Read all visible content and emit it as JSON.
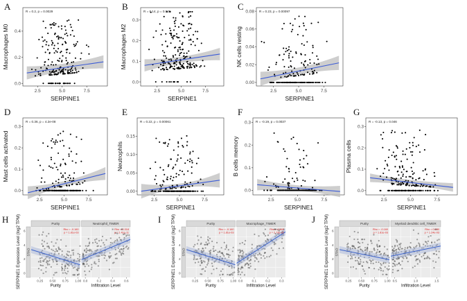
{
  "chart_data": [
    {
      "id": "A",
      "type": "scatter",
      "xlabel": "SERPINE1",
      "ylabel": "Macrophages M0",
      "stat": "R = 0.2, p = 0.0029",
      "xticks": [
        "2.5",
        "5.0",
        "7.5"
      ],
      "xtickvals": [
        2.5,
        5.0,
        7.5
      ],
      "yticks": [
        "0.0",
        "0.2",
        "0.4"
      ],
      "ytickvals": [
        0,
        0.2,
        0.4
      ],
      "xlim": [
        1,
        9.6
      ],
      "ylim": [
        -0.02,
        0.58
      ],
      "fit": [
        [
          1.4,
          0.08
        ],
        [
          9.2,
          0.165
        ]
      ],
      "band": [
        0.05,
        0.03
      ],
      "npoints": 220,
      "seed": 11,
      "ymaxdata": 0.5,
      "zeroFrac": 0.15
    },
    {
      "id": "B",
      "type": "scatter",
      "xlabel": "SERPINE1",
      "ylabel": "Macrophages M2",
      "stat": "R = 0.14, p = 0.036",
      "xticks": [
        "2.5",
        "5.0",
        "7.5"
      ],
      "xtickvals": [
        2.5,
        5.0,
        7.5
      ],
      "yticks": [
        "0.0",
        "0.1",
        "0.2",
        "0.3"
      ],
      "ytickvals": [
        0,
        0.1,
        0.2,
        0.3
      ],
      "xlim": [
        0.8,
        9.4
      ],
      "ylim": [
        -0.02,
        0.36
      ],
      "fit": [
        [
          1.2,
          0.08
        ],
        [
          9.0,
          0.135
        ]
      ],
      "band": [
        0.03,
        0.015
      ],
      "npoints": 220,
      "seed": 22,
      "ymaxdata": 0.34,
      "zeroFrac": 0.05
    },
    {
      "id": "C",
      "type": "scatter",
      "xlabel": "SERPINE1",
      "ylabel": "NK cells resting",
      "stat": "R = 0.23, p = 0.00097",
      "xticks": [
        "2.5",
        "5.0",
        "7.5"
      ],
      "xtickvals": [
        2.5,
        5.0,
        7.5
      ],
      "yticks": [
        "0.00",
        "0.02",
        "0.04",
        "0.06",
        "0.08"
      ],
      "ytickvals": [
        0,
        0.02,
        0.04,
        0.06,
        0.08
      ],
      "xlim": [
        0.8,
        9.4
      ],
      "ylim": [
        -0.004,
        0.084
      ],
      "fit": [
        [
          1.2,
          0.004
        ],
        [
          9.0,
          0.022
        ]
      ],
      "band": [
        0.008,
        0.004
      ],
      "npoints": 210,
      "seed": 33,
      "ymaxdata": 0.08,
      "zeroFrac": 0.45
    },
    {
      "id": "D",
      "type": "scatter",
      "xlabel": "SERPINE1",
      "ylabel": "Mast cells activated",
      "stat": "R = 0.36, p = 4.2e-08",
      "xticks": [
        "2.5",
        "5.0",
        "7.5"
      ],
      "xtickvals": [
        2.5,
        5.0,
        7.5
      ],
      "yticks": [
        "0.0",
        "0.1",
        "0.2",
        "0.3"
      ],
      "ytickvals": [
        0,
        0.1,
        0.2,
        0.3
      ],
      "xlim": [
        0.8,
        9.4
      ],
      "ylim": [
        -0.02,
        0.34
      ],
      "fit": [
        [
          1.3,
          -0.01
        ],
        [
          9.2,
          0.08
        ]
      ],
      "band": [
        0.03,
        0.012
      ],
      "npoints": 210,
      "seed": 44,
      "ymaxdata": 0.31,
      "zeroFrac": 0.55
    },
    {
      "id": "E",
      "type": "scatter",
      "xlabel": "SERPINE1",
      "ylabel": "Neutrophils",
      "stat": "R = 0.22, p = 0.00061",
      "xticks": [
        "2.5",
        "5.0",
        "7.5"
      ],
      "xtickvals": [
        2.5,
        5.0,
        7.5
      ],
      "yticks": [
        "0.00",
        "0.05",
        "0.10",
        "0.15"
      ],
      "ytickvals": [
        0,
        0.05,
        0.1,
        0.15
      ],
      "xlim": [
        0.8,
        9.4
      ],
      "ylim": [
        -0.01,
        0.2
      ],
      "fit": [
        [
          1.2,
          0.0
        ],
        [
          9.0,
          0.03
        ]
      ],
      "band": [
        0.02,
        0.006
      ],
      "npoints": 210,
      "seed": 55,
      "ymaxdata": 0.17,
      "zeroFrac": 0.55
    },
    {
      "id": "F",
      "type": "scatter",
      "xlabel": "SERPINE1",
      "ylabel": "B cells memory",
      "stat": "R = -0.19, p = 0.0037",
      "xticks": [
        "2.5",
        "5.0",
        "7.5"
      ],
      "xtickvals": [
        2.5,
        5.0,
        7.5
      ],
      "yticks": [
        "0.0",
        "0.1",
        "0.2",
        "0.3"
      ],
      "ytickvals": [
        0,
        0.1,
        0.2,
        0.3
      ],
      "xlim": [
        0.8,
        9.4
      ],
      "ylim": [
        -0.02,
        0.32
      ],
      "fit": [
        [
          1.2,
          0.025
        ],
        [
          9.0,
          -0.005
        ]
      ],
      "band": [
        0.025,
        0.012
      ],
      "npoints": 200,
      "seed": 66,
      "ymaxdata": 0.3,
      "zeroFrac": 0.75
    },
    {
      "id": "G",
      "type": "scatter",
      "xlabel": "SERPINE1",
      "ylabel": "Plasma cells",
      "stat": "R = -0.13, p = 0.046",
      "xticks": [
        "2.5",
        "5.0",
        "7.5"
      ],
      "xtickvals": [
        2.5,
        5.0,
        7.5
      ],
      "yticks": [
        "0.0",
        "0.1",
        "0.2",
        "0.3"
      ],
      "ytickvals": [
        0,
        0.1,
        0.2,
        0.3
      ],
      "xlim": [
        0.8,
        9.4
      ],
      "ylim": [
        -0.02,
        0.34
      ],
      "fit": [
        [
          1.2,
          0.06
        ],
        [
          9.0,
          0.015
        ]
      ],
      "band": [
        0.02,
        0.012
      ],
      "npoints": 220,
      "seed": 77,
      "ymaxdata": 0.32,
      "zeroFrac": 0.3
    }
  ],
  "timer_panels": [
    {
      "id": "H",
      "ylabel": "SERPINE1 Expression Level (log2 TPM)",
      "strip_side": "STAD",
      "left": {
        "title": "Purity",
        "stat": "Rho = -0.160\np = 1.81e-03",
        "xlabel": "Purity",
        "xticks": [
          "0.25",
          "0.50",
          "0.75",
          "1.00"
        ]
      },
      "right": {
        "title": "Neutrophil_TIMER",
        "stat": "Rho = 0.318\np = 2.41e-11",
        "xlabel": "Infiltration Level",
        "xticks": [
          "0.0",
          "0.2",
          "0.4",
          "0.6"
        ]
      },
      "yticks": [
        "0",
        "2",
        "4",
        "6"
      ],
      "fitL": [
        0.55,
        0.25
      ],
      "fitR": [
        0.35,
        0.75
      ],
      "seed": 88
    },
    {
      "id": "I",
      "ylabel": "SERPINE1 Expression Level (log2 TPM)",
      "strip_side": "STAD",
      "left": {
        "title": "Purity",
        "stat": "Rho = -0.160\np = 1.81e-03",
        "xlabel": "Purity",
        "xticks": [
          "0.25",
          "0.50",
          "0.75",
          "1.00"
        ]
      },
      "right": {
        "title": "Macrophage_TIMER",
        "stat": "Rho = 0.460\np = 2.73e-22",
        "xlabel": "Infiltration Level",
        "xticks": [
          "0.0",
          "0.1",
          "0.2",
          "0.3"
        ]
      },
      "yticks": [
        "0",
        "2",
        "4",
        "6"
      ],
      "fitL": [
        0.55,
        0.25
      ],
      "fitR": [
        0.28,
        0.9
      ],
      "seed": 99
    },
    {
      "id": "J",
      "ylabel": "SERPINE1 Expression Level (log2 TPM)",
      "strip_side": "STAD",
      "left": {
        "title": "Purity",
        "stat": "Rho = -0.160\np = 1.81e-03",
        "xlabel": "Purity",
        "xticks": [
          "0.25",
          "0.50",
          "0.75",
          "1.00"
        ]
      },
      "right": {
        "title": "Myeloid dendritic cell_TIMER",
        "stat": "Rho = 0.150\np = 1.24e-03",
        "xlabel": "Infiltration Level",
        "xticks": [
          "0.5",
          "1.0",
          "1.5"
        ]
      },
      "yticks": [
        "0",
        "2",
        "4",
        "6"
      ],
      "fitL": [
        0.55,
        0.35
      ],
      "fitR": [
        0.42,
        0.62
      ],
      "seed": 111
    }
  ]
}
